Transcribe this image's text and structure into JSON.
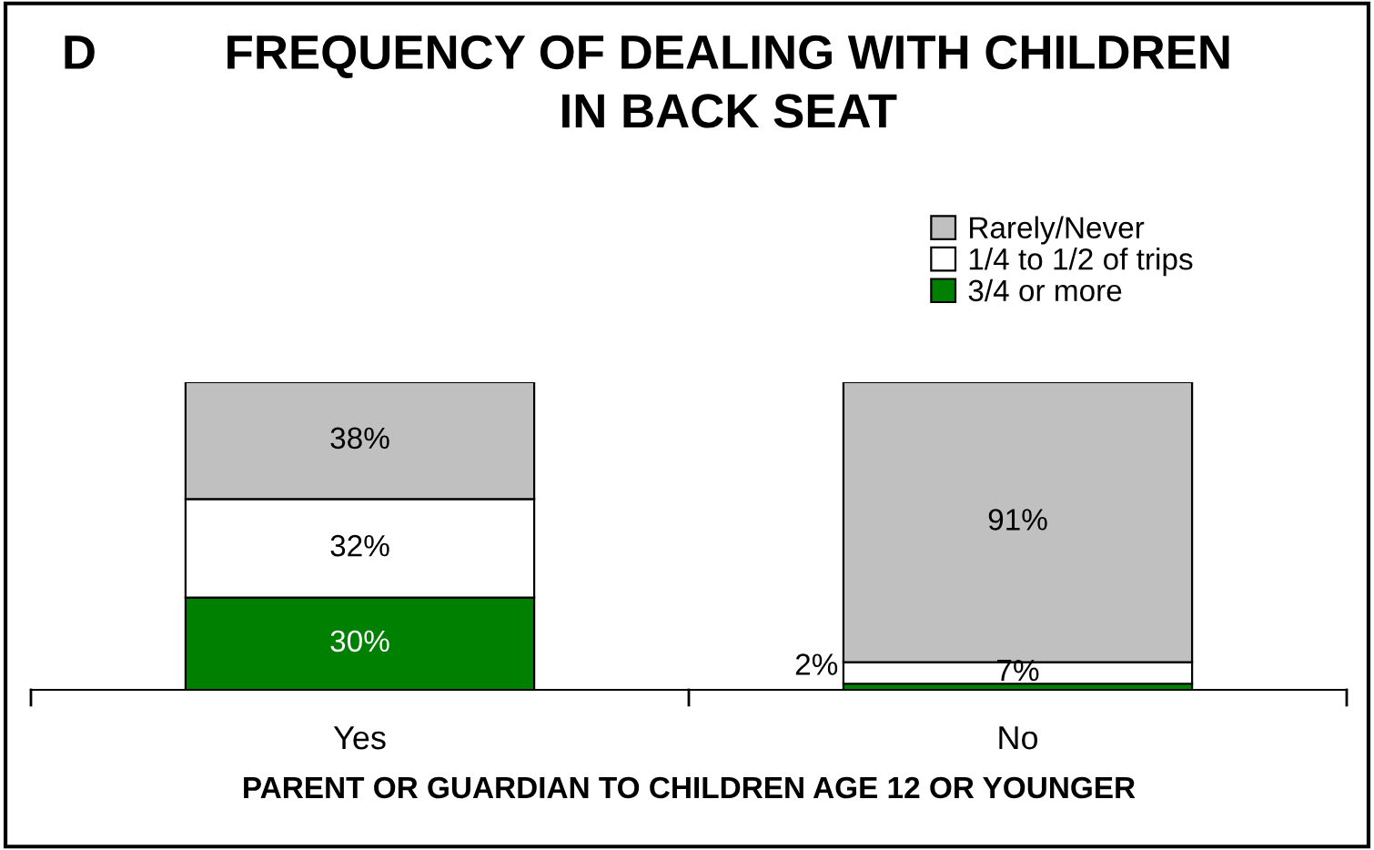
{
  "chart_data": {
    "type": "bar",
    "stacked": true,
    "title": "FREQUENCY OF DEALING WITH CHILDREN\nIN BACK SEAT",
    "xlabel": "PARENT OR GUARDIAN TO CHILDREN AGE 12 OR YOUNGER",
    "annotations": [
      "D"
    ],
    "categories": [
      "Yes",
      "No"
    ],
    "series": [
      {
        "name": "3/4 or more",
        "color": "#008000",
        "values": [
          30,
          2
        ],
        "value_labels": [
          "30%",
          "2%"
        ]
      },
      {
        "name": "1/4 to 1/2 of trips",
        "color": "#ffffff",
        "values": [
          32,
          7
        ],
        "value_labels": [
          "32%",
          "7%"
        ]
      },
      {
        "name": "Rarely/Never",
        "color": "#c0c0c0",
        "values": [
          38,
          91
        ],
        "value_labels": [
          "38%",
          "91%"
        ]
      }
    ],
    "ylim": [
      0,
      100
    ],
    "grid": false,
    "legend": "top right"
  }
}
